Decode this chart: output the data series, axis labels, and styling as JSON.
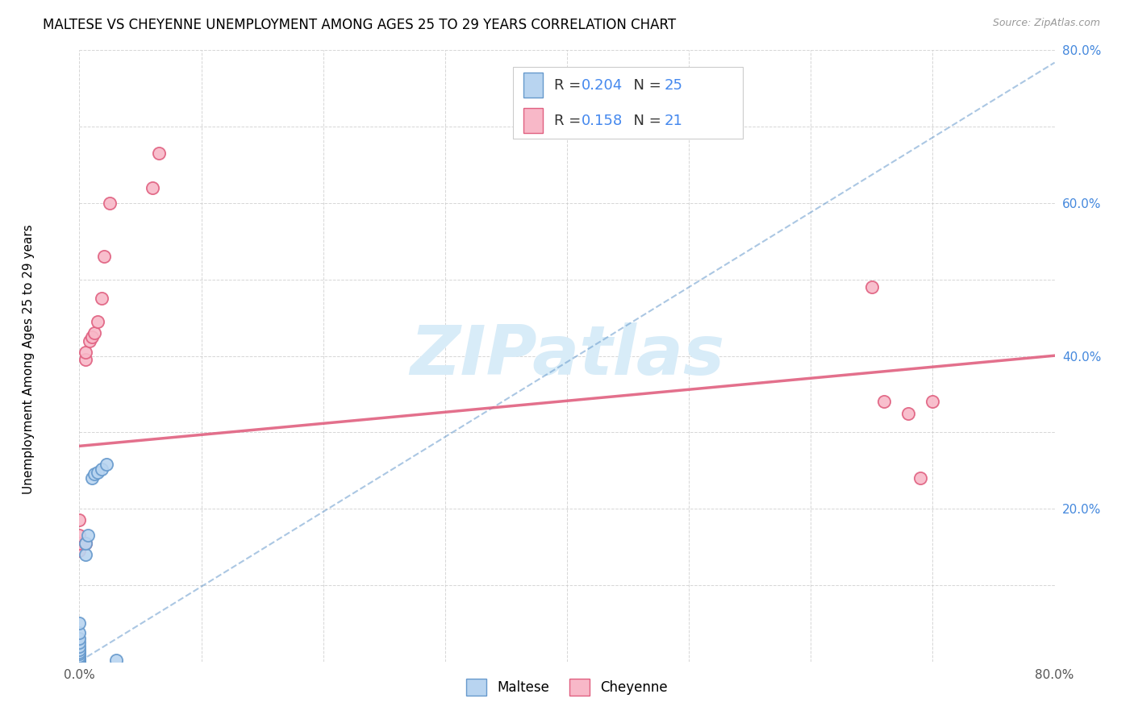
{
  "title": "MALTESE VS CHEYENNE UNEMPLOYMENT AMONG AGES 25 TO 29 YEARS CORRELATION CHART",
  "source": "Source: ZipAtlas.com",
  "ylabel": "Unemployment Among Ages 25 to 29 years",
  "xlim": [
    0.0,
    0.8
  ],
  "ylim": [
    0.0,
    0.8
  ],
  "maltese_color": "#b8d4f0",
  "cheyenne_color": "#f8b8c8",
  "maltese_edge_color": "#6699cc",
  "cheyenne_edge_color": "#e06080",
  "maltese_R": 0.204,
  "maltese_N": 25,
  "cheyenne_R": 0.158,
  "cheyenne_N": 21,
  "maltese_x": [
    0.0,
    0.0,
    0.0,
    0.0,
    0.0,
    0.0,
    0.0,
    0.0,
    0.0,
    0.0,
    0.0,
    0.0,
    0.0,
    0.0,
    0.0,
    0.0,
    0.005,
    0.005,
    0.007,
    0.01,
    0.012,
    0.015,
    0.018,
    0.022,
    0.03
  ],
  "maltese_y": [
    0.0,
    0.0,
    0.0,
    0.0,
    0.002,
    0.003,
    0.005,
    0.007,
    0.01,
    0.012,
    0.015,
    0.02,
    0.025,
    0.03,
    0.038,
    0.05,
    0.14,
    0.155,
    0.165,
    0.24,
    0.245,
    0.248,
    0.252,
    0.258,
    0.002
  ],
  "cheyenne_x": [
    0.0,
    0.0,
    0.0,
    0.0,
    0.005,
    0.005,
    0.008,
    0.01,
    0.012,
    0.015,
    0.018,
    0.02,
    0.025,
    0.06,
    0.065,
    0.65,
    0.66,
    0.68,
    0.69,
    0.7,
    0.005
  ],
  "cheyenne_y": [
    0.145,
    0.155,
    0.165,
    0.185,
    0.395,
    0.405,
    0.42,
    0.425,
    0.43,
    0.445,
    0.475,
    0.53,
    0.6,
    0.62,
    0.665,
    0.49,
    0.34,
    0.325,
    0.24,
    0.34,
    0.155
  ],
  "cheyenne_trend_intercept": 0.282,
  "cheyenne_trend_slope": 0.148,
  "maltese_trend_intercept": 0.0,
  "maltese_trend_slope": 0.98,
  "watermark_color": "#d8ecf8",
  "marker_size": 120,
  "title_fontsize": 12,
  "axis_label_fontsize": 11,
  "tick_fontsize": 11,
  "legend_fontsize": 13,
  "val_color": "#4488ee",
  "label_color": "#333333"
}
